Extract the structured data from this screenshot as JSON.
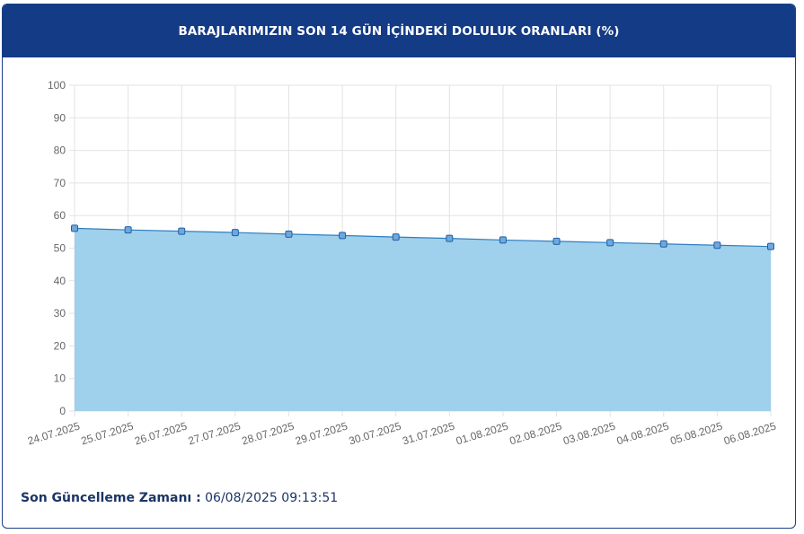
{
  "header": {
    "title": "BARAJLARIMIZIN SON 14 GÜN İÇİNDEKİ DOLULUK ORANLARI (%)"
  },
  "footer": {
    "label": "Son Güncelleme Zamanı :",
    "value": "06/08/2025 09:13:51"
  },
  "colors": {
    "header_bg": "#133b86",
    "area_fill": "#9fd0ec",
    "line": "#2f7fc1",
    "point_fill": "#6ea8dc",
    "point_stroke": "#1f5fa6"
  },
  "chart_data": {
    "type": "area",
    "x": [
      "24.07.2025",
      "25.07.2025",
      "26.07.2025",
      "27.07.2025",
      "28.07.2025",
      "29.07.2025",
      "30.07.2025",
      "31.07.2025",
      "01.08.2025",
      "02.08.2025",
      "03.08.2025",
      "04.08.2025",
      "05.08.2025",
      "06.08.2025"
    ],
    "series": [
      {
        "values": [
          56.1,
          55.6,
          55.2,
          54.8,
          54.3,
          53.9,
          53.4,
          53.0,
          52.5,
          52.1,
          51.7,
          51.3,
          50.9,
          50.5
        ]
      }
    ],
    "ylim": [
      0,
      100
    ],
    "yticks": [
      0,
      10,
      20,
      30,
      40,
      50,
      60,
      70,
      80,
      90,
      100
    ],
    "grid": true,
    "legend": "none"
  }
}
